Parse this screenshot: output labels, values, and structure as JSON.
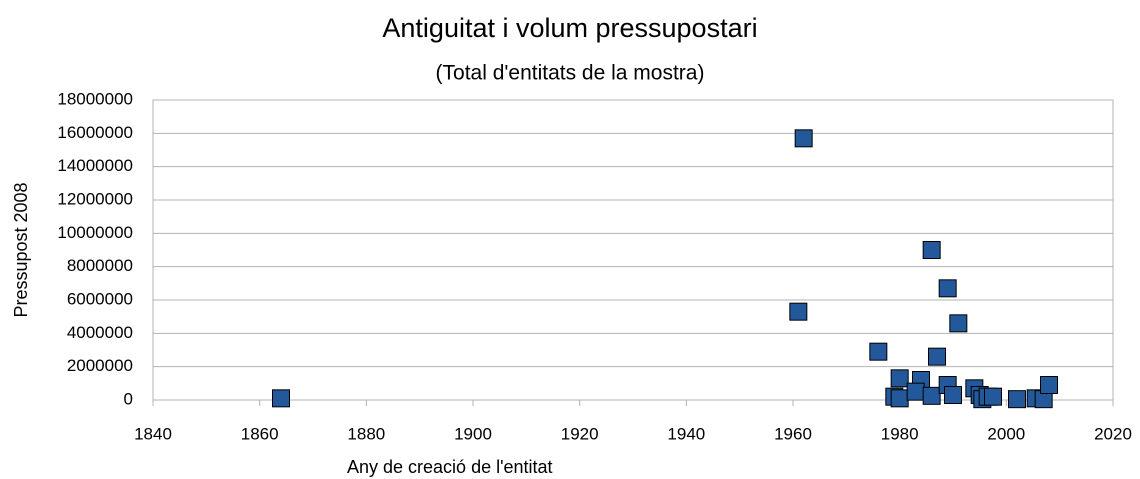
{
  "chart_data": {
    "type": "scatter",
    "title": "Antiguitat i volum pressupostari",
    "subtitle": "(Total d'entitats de la mostra)",
    "x_label": "Any de creació de l'entitat",
    "y_label": "Pressupost 2008",
    "color": "#23599a",
    "grid": true,
    "xlim": [
      1840,
      2020
    ],
    "xticks": [
      1840,
      1860,
      1880,
      1900,
      1920,
      1940,
      1960,
      1980,
      2000,
      2020
    ],
    "ylim": [
      0,
      18000000
    ],
    "yticks": [
      0,
      2000000,
      4000000,
      6000000,
      8000000,
      10000000,
      12000000,
      14000000,
      16000000,
      18000000
    ],
    "x": [
      1864,
      1962,
      1961,
      1976,
      1986,
      1989,
      1991,
      1987,
      1980,
      1984,
      1979,
      1980,
      1983,
      1986,
      1989,
      1990,
      1994,
      1995,
      1995.5,
      1996.5,
      1997.5,
      2002,
      2005.5,
      2007,
      2008
    ],
    "values": [
      100000,
      15700000,
      5300000,
      2900000,
      9000000,
      6700000,
      4600000,
      2600000,
      1300000,
      1200000,
      200000,
      100000,
      500000,
      250000,
      900000,
      300000,
      700000,
      300000,
      50000,
      200000,
      200000,
      50000,
      100000,
      50000,
      900000
    ]
  }
}
